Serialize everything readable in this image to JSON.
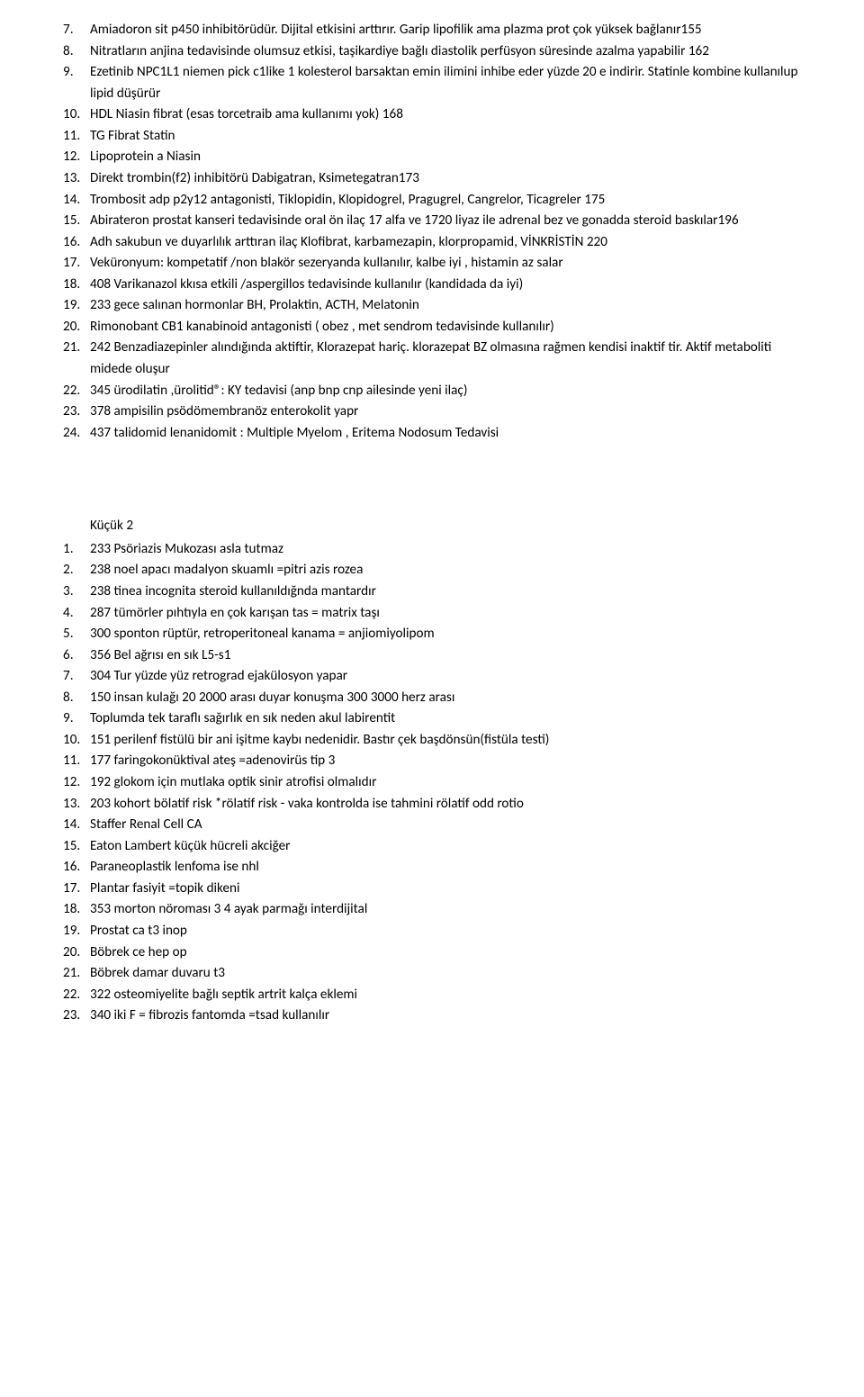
{
  "list1": [
    {
      "n": "7.",
      "t": "Amiadoron sit p450 inhibitörüdür. Dijital etkisini arttırır. Garip lipofilik ama plazma prot çok yüksek bağlanır155"
    },
    {
      "n": "8.",
      "t": "Nitratların anjina tedavisinde olumsuz etkisi, taşikardiye bağlı diastolik perfüsyon süresinde azalma yapabilir 162"
    },
    {
      "n": "9.",
      "t": "Ezetinib NPC1L1 niemen pick c1like 1 kolesterol barsaktan emin ilimini inhibe eder yüzde 20 e indirir. Statinle kombine kullanılup lipid düşürür"
    },
    {
      "n": "10.",
      "t": "HDL Niasin fibrat  (esas torcetraib ama kullanımı yok) 168"
    },
    {
      "n": "11.",
      "t": "TG Fibrat Statin"
    },
    {
      "n": "12.",
      "t": "Lipoprotein a Niasin"
    },
    {
      "n": "13.",
      "t": "Direkt trombin(f2) inhibitörü Dabigatran, Ksimetegatran173"
    },
    {
      "n": "14.",
      "t": "Trombosit adp p2y12 antagonisti, Tiklopidin, Klopidogrel, Pragugrel, Cangrelor, Ticagreler 175"
    },
    {
      "n": "15.",
      "t": "Abirateron prostat kanseri tedavisinde oral ön ilaç 17 alfa ve 1720 liyaz ile adrenal bez ve gonadda steroid baskılar196"
    },
    {
      "n": "16.",
      "t": "Adh sakubun ve duyarlılık arttıran ilaç Klofibrat, karbamezapin, klorpropamid, VİNKRİSTİN 220"
    },
    {
      "n": "17.",
      "t": "Veküronyum: kompetatif /non blakör sezeryanda kullanılır, kalbe iyi , histamin az salar"
    },
    {
      "n": "18.",
      "t": "408 Varikanazol kkısa etkili /aspergillos tedavisinde kullanılır (kandidada da iyi)"
    },
    {
      "n": "19.",
      "t": "233 gece salınan hormonlar BH, Prolaktin, ACTH, Melatonin"
    },
    {
      "n": "20.",
      "t": "Rimonobant CB1 kanabinoid antagonisti ( obez , met sendrom tedavisinde kullanılır)"
    },
    {
      "n": "21.",
      "t": "242 Benzadiazepinler alındığında aktiftir, Klorazepat hariç. klorazepat BZ olmasına rağmen kendisi inaktif tir. Aktif metaboliti midede oluşur"
    },
    {
      "n": "22.",
      "t": "345 ürodilatin ,ürolitid®: KY tedavisi (anp bnp cnp ailesinde yeni ilaç)"
    },
    {
      "n": "23.",
      "t": "378 ampisilin psödömembranöz enterokolit yapr"
    },
    {
      "n": "24.",
      "t": "437 talidomid lenanidomit : Multiple Myelom , Eritema Nodosum Tedavisi"
    }
  ],
  "section2_title": "Küçük 2",
  "list2": [
    {
      "n": "1.",
      "t": "233 Psöriazis Mukozası asla tutmaz"
    },
    {
      "n": "2.",
      "t": "238 noel apacı madalyon skuamlı =pitri azis rozea"
    },
    {
      "n": "3.",
      "t": "238 tinea incognita steroid kullanıldığnda mantardır"
    },
    {
      "n": "4.",
      "t": "287 tümörler pıhtıyla en çok karışan tas = matrix taşı"
    },
    {
      "n": "5.",
      "t": "300 sponton rüptür, retroperitoneal kanama = anjiomiyolipom"
    },
    {
      "n": "6.",
      "t": "356 Bel ağrısı en sık L5-s1"
    },
    {
      "n": "7.",
      "t": "304 Tur yüzde yüz retrograd ejakülosyon yapar"
    },
    {
      "n": "8.",
      "t": "150 insan kulağı 20 2000 arası duyar konuşma 300 3000 herz arası"
    },
    {
      "n": "9.",
      "t": "Toplumda tek taraflı sağırlık en sık neden akul labirentit"
    },
    {
      "n": "10.",
      "t": "151 perilenf fistülü bir ani işitme kaybı nedenidir. Bastır çek başdönsün(fistüla testi)"
    },
    {
      "n": "11.",
      "t": "177 faringokonüktival ateş =adenovirüs tip 3"
    },
    {
      "n": "12.",
      "t": "192 glokom için mutlaka optik sinir atrofisi olmalıdır"
    },
    {
      "n": "13.",
      "t": "203 kohort bölatif risk *rölatif risk  - vaka kontrolda ise tahmini rölatif odd rotio"
    },
    {
      "n": "14.",
      "t": "Staffer Renal Cell CA"
    },
    {
      "n": "15.",
      "t": "Eaton Lambert  küçük hücreli akciğer"
    },
    {
      "n": "16.",
      "t": "Paraneoplastik lenfoma ise nhl"
    },
    {
      "n": "17.",
      "t": "Plantar fasiyit =topik dikeni"
    },
    {
      "n": "18.",
      "t": "353 morton nöroması 3 4 ayak parmağı interdijital"
    },
    {
      "n": "19.",
      "t": "Prostat ca t3 inop"
    },
    {
      "n": "20.",
      "t": "Böbrek ce hep op"
    },
    {
      "n": "21.",
      "t": "Böbrek damar duvaru t3"
    },
    {
      "n": "22.",
      "t": "322 osteomiyelite bağlı septik artrit kalça eklemi"
    },
    {
      "n": "23.",
      "t": "340 iki F = fibrozis fantomda =tsad kullanılır"
    }
  ]
}
